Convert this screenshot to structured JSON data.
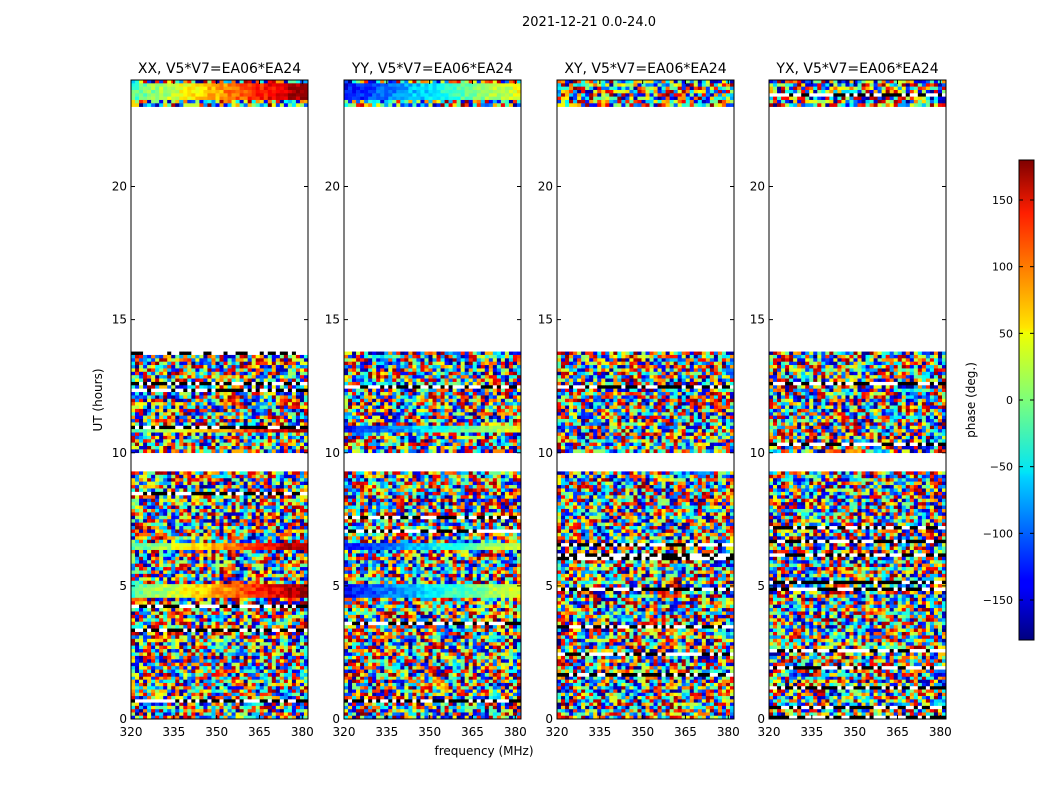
{
  "chart_data": {
    "type": "heatmap",
    "title": "2021-12-21 0.0-24.0",
    "xlabel": "frequency (MHz)",
    "ylabel": "UT (hours)",
    "xlim": [
      320,
      382
    ],
    "ylim": [
      0,
      24
    ],
    "x_ticks": [
      320,
      335,
      350,
      365,
      380
    ],
    "y_ticks": [
      0,
      5,
      10,
      15,
      20
    ],
    "panels": [
      {
        "title": "XX, V5*V7=EA06*EA24",
        "polarization": "XX"
      },
      {
        "title": "YY, V5*V7=EA06*EA24",
        "polarization": "YY"
      },
      {
        "title": "XY, V5*V7=EA06*EA24",
        "polarization": "XY"
      },
      {
        "title": "YX, V5*V7=EA06*EA24",
        "polarization": "YX"
      }
    ],
    "data_segments_ut": [
      [
        0.0,
        1.6
      ],
      [
        1.6,
        9.3
      ],
      [
        10.0,
        13.8
      ],
      [
        23.0,
        24.0
      ]
    ],
    "flagged_gaps_ut": [
      [
        9.3,
        10.0
      ],
      [
        13.8,
        23.0
      ]
    ],
    "colorbar": {
      "label": "phase (deg.)",
      "range": [
        -180,
        180
      ],
      "ticks": [
        -150,
        -100,
        -50,
        0,
        50,
        100,
        150
      ],
      "tick_labels": [
        "−150",
        "−100",
        "−50",
        "0",
        "50",
        "100",
        "150"
      ],
      "colormap": "jet"
    }
  }
}
